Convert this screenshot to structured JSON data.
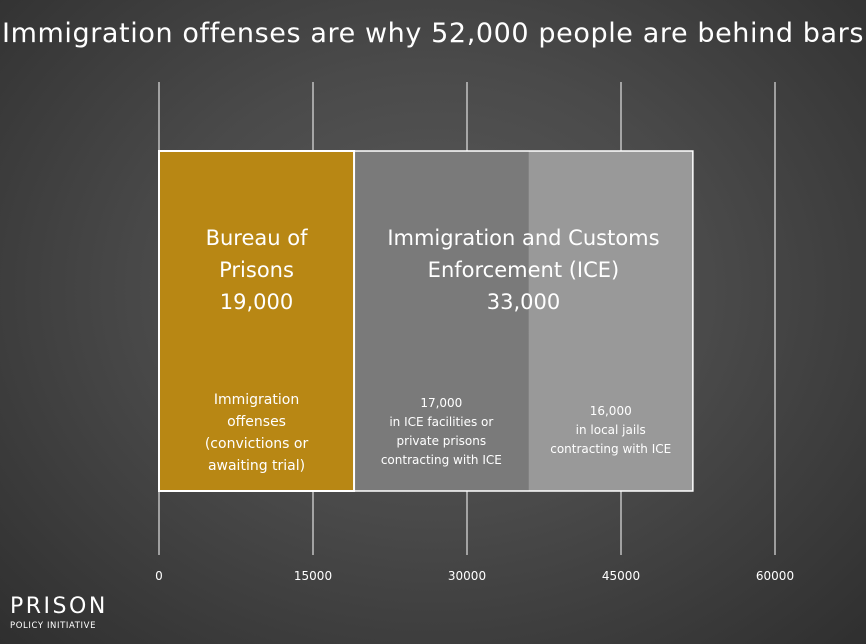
{
  "title": "Immigration offenses are why 52,000 people are behind bars",
  "logo": {
    "line1": "PRISON",
    "line2": "POLICY INITIATIVE"
  },
  "colors": {
    "bop": "#b88714",
    "ice_facilities": "#7a7a7a",
    "local_jails": "#999999",
    "outline": "#ffffff",
    "gridline": "#ffffff"
  },
  "chart_data": {
    "type": "bar",
    "orientation": "horizontal-stacked",
    "xlim": [
      0,
      60000
    ],
    "xticks": [
      0,
      15000,
      30000,
      45000,
      60000
    ],
    "xtick_labels": [
      "0",
      "15000",
      "30000",
      "45000",
      "60000"
    ],
    "grid": true,
    "segments": [
      {
        "group": "bop",
        "value": 19000,
        "start": 0,
        "color_key": "bop",
        "label_lines": [
          "Bureau of",
          "Prisons",
          "19,000"
        ],
        "detail_lines": [
          "Immigration",
          "offenses",
          "(convictions or",
          "awaiting trial)"
        ]
      },
      {
        "group": "ice",
        "value": 17000,
        "start": 19000,
        "color_key": "ice_facilities",
        "detail_lines": [
          "17,000",
          "in ICE facilities or",
          "private prisons",
          "contracting with ICE"
        ]
      },
      {
        "group": "ice",
        "value": 16000,
        "start": 36000,
        "color_key": "local_jails",
        "detail_lines": [
          "16,000",
          "in local jails",
          "contracting with ICE"
        ]
      }
    ],
    "groups": [
      {
        "id": "bop",
        "value": 19000,
        "label_lines": [
          "Bureau of",
          "Prisons",
          "19,000"
        ]
      },
      {
        "id": "ice",
        "value": 33000,
        "label_lines": [
          "Immigration and Customs",
          "Enforcement  (ICE)",
          "33,000"
        ]
      }
    ]
  }
}
